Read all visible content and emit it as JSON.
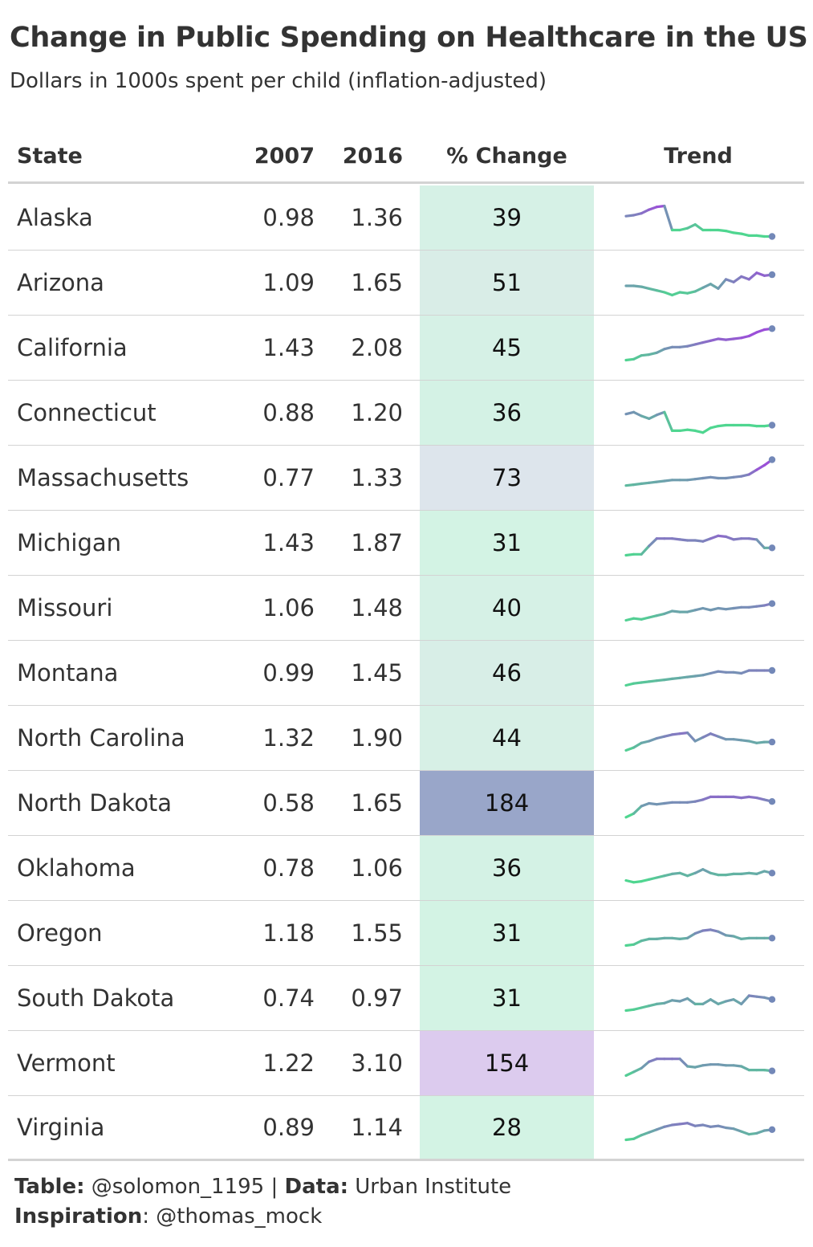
{
  "header": {
    "title": "Change in Public Spending on Healthcare in the US",
    "subtitle": "Dollars in 1000s spent per child (inflation-adjusted)"
  },
  "table": {
    "columns": [
      "State",
      "2007",
      "2016",
      "% Change",
      "Trend"
    ]
  },
  "colors": {
    "sparkline_low": "#4fd690",
    "sparkline_high": "#9b4fd8",
    "pct_scale": [
      "#d3f3e4",
      "#dde5ec",
      "#99a6c9",
      "#dccbee"
    ]
  },
  "chart_data": {
    "type": "table",
    "title": "Change in Public Spending on Healthcare in the US",
    "subtitle": "Dollars in 1000s spent per child (inflation-adjusted)",
    "rows": [
      {
        "state": "Alaska",
        "y2007": "0.98",
        "y2016": "1.36",
        "pct_change": "39",
        "pct_color": "#d6f1e6",
        "trend": [
          0.45,
          0.46,
          0.48,
          0.52,
          0.55,
          0.56,
          0.3,
          0.3,
          0.32,
          0.36,
          0.3,
          0.3,
          0.3,
          0.29,
          0.27,
          0.26,
          0.24,
          0.24,
          0.23,
          0.23
        ]
      },
      {
        "state": "Arizona",
        "y2007": "1.09",
        "y2016": "1.65",
        "pct_change": "51",
        "pct_color": "#d9ede7",
        "trend": [
          0.4,
          0.4,
          0.39,
          0.37,
          0.35,
          0.33,
          0.3,
          0.33,
          0.32,
          0.34,
          0.38,
          0.42,
          0.37,
          0.47,
          0.44,
          0.5,
          0.47,
          0.54,
          0.51,
          0.52
        ]
      },
      {
        "state": "California",
        "y2007": "1.43",
        "y2016": "2.08",
        "pct_change": "45",
        "pct_color": "#d6f1e6",
        "trend": [
          0.3,
          0.31,
          0.35,
          0.36,
          0.38,
          0.42,
          0.44,
          0.44,
          0.45,
          0.47,
          0.49,
          0.51,
          0.53,
          0.52,
          0.53,
          0.54,
          0.56,
          0.6,
          0.63,
          0.64
        ]
      },
      {
        "state": "Connecticut",
        "y2007": "0.88",
        "y2016": "1.20",
        "pct_change": "36",
        "pct_color": "#d4f2e5",
        "trend": [
          0.42,
          0.44,
          0.4,
          0.37,
          0.41,
          0.44,
          0.24,
          0.24,
          0.25,
          0.24,
          0.22,
          0.27,
          0.29,
          0.3,
          0.3,
          0.3,
          0.3,
          0.29,
          0.29,
          0.3
        ]
      },
      {
        "state": "Massachusetts",
        "y2007": "0.77",
        "y2016": "1.33",
        "pct_change": "73",
        "pct_color": "#dde5ec",
        "trend": [
          0.35,
          0.36,
          0.37,
          0.38,
          0.39,
          0.4,
          0.41,
          0.41,
          0.41,
          0.42,
          0.43,
          0.44,
          0.43,
          0.43,
          0.44,
          0.45,
          0.47,
          0.52,
          0.57,
          0.63
        ]
      },
      {
        "state": "Michigan",
        "y2007": "1.43",
        "y2016": "1.87",
        "pct_change": "31",
        "pct_color": "#d3f3e4",
        "trend": [
          0.3,
          0.31,
          0.31,
          0.4,
          0.48,
          0.48,
          0.48,
          0.47,
          0.46,
          0.46,
          0.45,
          0.48,
          0.51,
          0.5,
          0.47,
          0.48,
          0.48,
          0.47,
          0.38,
          0.38
        ]
      },
      {
        "state": "Missouri",
        "y2007": "1.06",
        "y2016": "1.48",
        "pct_change": "40",
        "pct_color": "#d6f1e6",
        "trend": [
          0.3,
          0.32,
          0.31,
          0.33,
          0.35,
          0.37,
          0.4,
          0.39,
          0.39,
          0.41,
          0.43,
          0.41,
          0.43,
          0.42,
          0.43,
          0.44,
          0.44,
          0.45,
          0.46,
          0.48
        ]
      },
      {
        "state": "Montana",
        "y2007": "0.99",
        "y2016": "1.45",
        "pct_change": "46",
        "pct_color": "#d8eee7",
        "trend": [
          0.3,
          0.32,
          0.33,
          0.34,
          0.35,
          0.36,
          0.37,
          0.38,
          0.39,
          0.4,
          0.41,
          0.43,
          0.45,
          0.44,
          0.44,
          0.43,
          0.46,
          0.46,
          0.46,
          0.46
        ]
      },
      {
        "state": "North Carolina",
        "y2007": "1.32",
        "y2016": "1.90",
        "pct_change": "44",
        "pct_color": "#d7f0e6",
        "trend": [
          0.3,
          0.33,
          0.38,
          0.4,
          0.43,
          0.45,
          0.47,
          0.48,
          0.49,
          0.4,
          0.44,
          0.48,
          0.45,
          0.42,
          0.42,
          0.41,
          0.4,
          0.38,
          0.39,
          0.39
        ]
      },
      {
        "state": "North Dakota",
        "y2007": "0.58",
        "y2016": "1.65",
        "pct_change": "184",
        "pct_color": "#99a6c9",
        "trend": [
          0.28,
          0.32,
          0.4,
          0.43,
          0.42,
          0.43,
          0.44,
          0.44,
          0.44,
          0.45,
          0.47,
          0.5,
          0.5,
          0.5,
          0.5,
          0.49,
          0.5,
          0.49,
          0.47,
          0.45
        ]
      },
      {
        "state": "Oklahoma",
        "y2007": "0.78",
        "y2016": "1.06",
        "pct_change": "36",
        "pct_color": "#d4f2e5",
        "trend": [
          0.3,
          0.28,
          0.29,
          0.31,
          0.33,
          0.35,
          0.37,
          0.38,
          0.35,
          0.38,
          0.42,
          0.38,
          0.36,
          0.36,
          0.37,
          0.37,
          0.38,
          0.37,
          0.4,
          0.38
        ]
      },
      {
        "state": "Oregon",
        "y2007": "1.18",
        "y2016": "1.55",
        "pct_change": "31",
        "pct_color": "#d3f3e4",
        "trend": [
          0.3,
          0.31,
          0.35,
          0.37,
          0.37,
          0.38,
          0.38,
          0.37,
          0.38,
          0.43,
          0.46,
          0.47,
          0.45,
          0.41,
          0.4,
          0.37,
          0.38,
          0.38,
          0.38,
          0.38
        ]
      },
      {
        "state": "South Dakota",
        "y2007": "0.74",
        "y2016": "0.97",
        "pct_change": "31",
        "pct_color": "#d3f3e4",
        "trend": [
          0.3,
          0.31,
          0.33,
          0.35,
          0.37,
          0.38,
          0.41,
          0.4,
          0.43,
          0.37,
          0.37,
          0.42,
          0.37,
          0.4,
          0.42,
          0.37,
          0.46,
          0.45,
          0.44,
          0.42
        ]
      },
      {
        "state": "Vermont",
        "y2007": "1.22",
        "y2016": "3.10",
        "pct_change": "154",
        "pct_color": "#dccbee",
        "trend": [
          0.3,
          0.34,
          0.38,
          0.45,
          0.48,
          0.48,
          0.48,
          0.48,
          0.4,
          0.39,
          0.41,
          0.42,
          0.42,
          0.41,
          0.41,
          0.4,
          0.36,
          0.36,
          0.36,
          0.35
        ]
      },
      {
        "state": "Virginia",
        "y2007": "0.89",
        "y2016": "1.14",
        "pct_change": "28",
        "pct_color": "#d3f3e4",
        "trend": [
          0.3,
          0.31,
          0.35,
          0.38,
          0.41,
          0.44,
          0.46,
          0.47,
          0.48,
          0.45,
          0.46,
          0.44,
          0.45,
          0.43,
          0.42,
          0.39,
          0.36,
          0.37,
          0.4,
          0.41
        ]
      }
    ]
  },
  "footer": {
    "table_label": "Table:",
    "table_value": "@solomon_1195",
    "separator": "|",
    "data_label": "Data:",
    "data_value": "Urban Institute",
    "inspiration_label": "Inspiration",
    "inspiration_colon": ":",
    "inspiration_value": "@thomas_mock"
  }
}
